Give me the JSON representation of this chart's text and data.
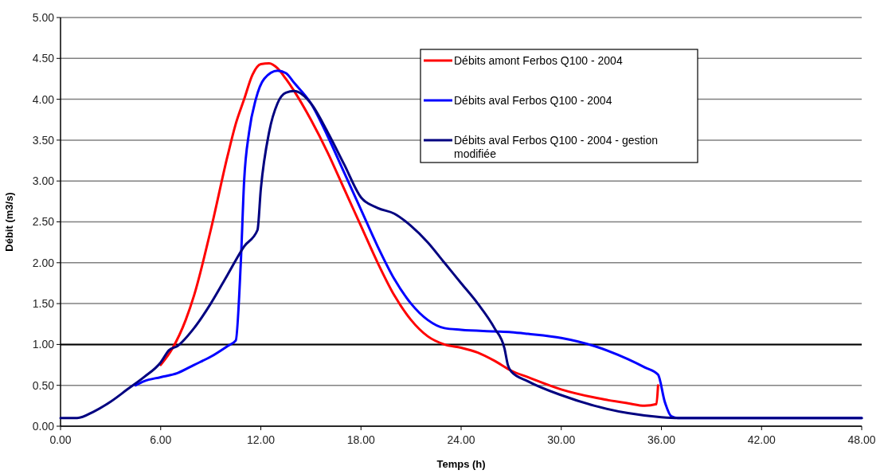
{
  "chart_data": {
    "type": "line",
    "xlabel": "Temps (h)",
    "ylabel": "Débit (m3/s)",
    "xlim": [
      0,
      48
    ],
    "ylim": [
      0,
      5
    ],
    "xticks": [
      {
        "value": 0,
        "label": "0.00"
      },
      {
        "value": 6,
        "label": "6.00"
      },
      {
        "value": 12,
        "label": "12.00"
      },
      {
        "value": 18,
        "label": "18.00"
      },
      {
        "value": 24,
        "label": "24.00"
      },
      {
        "value": 30,
        "label": "30.00"
      },
      {
        "value": 36,
        "label": "36.00"
      },
      {
        "value": 42,
        "label": "42.00"
      },
      {
        "value": 48,
        "label": "48.00"
      }
    ],
    "yticks": [
      {
        "value": 0,
        "label": "0.00"
      },
      {
        "value": 0.5,
        "label": "0.50"
      },
      {
        "value": 1,
        "label": "1.00"
      },
      {
        "value": 1.5,
        "label": "1.50"
      },
      {
        "value": 2,
        "label": "2.00"
      },
      {
        "value": 2.5,
        "label": "2.50"
      },
      {
        "value": 3,
        "label": "3.00"
      },
      {
        "value": 3.5,
        "label": "3.50"
      },
      {
        "value": 4,
        "label": "4.00"
      },
      {
        "value": 4.5,
        "label": "4.50"
      },
      {
        "value": 5,
        "label": "5.00"
      }
    ],
    "grid": "y",
    "legend": "top right",
    "marker": "none",
    "line_style": "solid",
    "ref_lines": [
      {
        "axis": "y",
        "value": 1,
        "color": "#000000"
      }
    ],
    "series": [
      {
        "name": "Débits amont Ferbos Q100 - 2004",
        "color": "#ff0000",
        "x": [
          6,
          6.7,
          7.5,
          8,
          9,
          10,
          10.5,
          11,
          11.5,
          12,
          12.5,
          13,
          13.5,
          14,
          15,
          16,
          17,
          18,
          19,
          20,
          21,
          22,
          23,
          24,
          25,
          26,
          27,
          28,
          30,
          32,
          34,
          35,
          35.7,
          35.8
        ],
        "values": [
          0.75,
          0.95,
          1.3,
          1.6,
          2.4,
          3.3,
          3.7,
          4.0,
          4.3,
          4.43,
          4.44,
          4.38,
          4.25,
          4.1,
          3.75,
          3.35,
          2.9,
          2.45,
          2.0,
          1.6,
          1.3,
          1.1,
          1.0,
          0.96,
          0.9,
          0.8,
          0.68,
          0.6,
          0.45,
          0.35,
          0.28,
          0.25,
          0.27,
          0.5
        ]
      },
      {
        "name": "Débits aval Ferbos Q100 - 2004",
        "color": "#0000ff",
        "x": [
          4.5,
          5,
          6,
          7,
          8,
          9,
          10,
          10.5,
          10.8,
          11,
          11.3,
          11.7,
          12.2,
          13,
          13.5,
          14,
          15,
          16,
          17,
          18,
          19,
          20,
          21,
          22,
          23,
          24,
          26,
          27,
          28,
          30,
          32,
          34,
          35,
          35.8,
          36.2,
          36.6,
          37,
          48
        ],
        "values": [
          0.5,
          0.55,
          0.6,
          0.65,
          0.75,
          0.85,
          0.98,
          1.05,
          2.0,
          3.0,
          3.6,
          4.0,
          4.25,
          4.35,
          4.32,
          4.2,
          3.95,
          3.55,
          3.1,
          2.65,
          2.2,
          1.8,
          1.5,
          1.3,
          1.2,
          1.18,
          1.16,
          1.15,
          1.13,
          1.08,
          0.98,
          0.82,
          0.72,
          0.63,
          0.3,
          0.12,
          0.1,
          0.1
        ]
      },
      {
        "name": "Débits aval Ferbos Q100 - 2004 - gestion modifiée",
        "color": "#000080",
        "x": [
          0,
          1,
          2,
          3,
          4,
          5,
          6,
          6.5,
          7,
          8,
          9,
          10,
          11,
          11.8,
          12,
          12.5,
          13,
          13.5,
          14,
          15,
          16,
          17,
          18,
          19,
          20,
          21,
          22,
          23,
          24,
          25,
          26,
          26.6,
          26.8,
          27,
          28,
          30,
          32,
          34,
          36,
          37,
          48
        ],
        "values": [
          0.1,
          0.1,
          0.18,
          0.3,
          0.45,
          0.6,
          0.78,
          0.93,
          0.98,
          1.2,
          1.5,
          1.85,
          2.2,
          2.4,
          2.9,
          3.6,
          3.95,
          4.08,
          4.1,
          3.95,
          3.6,
          3.2,
          2.8,
          2.67,
          2.6,
          2.45,
          2.25,
          2.0,
          1.75,
          1.5,
          1.2,
          0.95,
          0.75,
          0.67,
          0.55,
          0.38,
          0.25,
          0.16,
          0.11,
          0.1,
          0.1
        ]
      }
    ]
  }
}
